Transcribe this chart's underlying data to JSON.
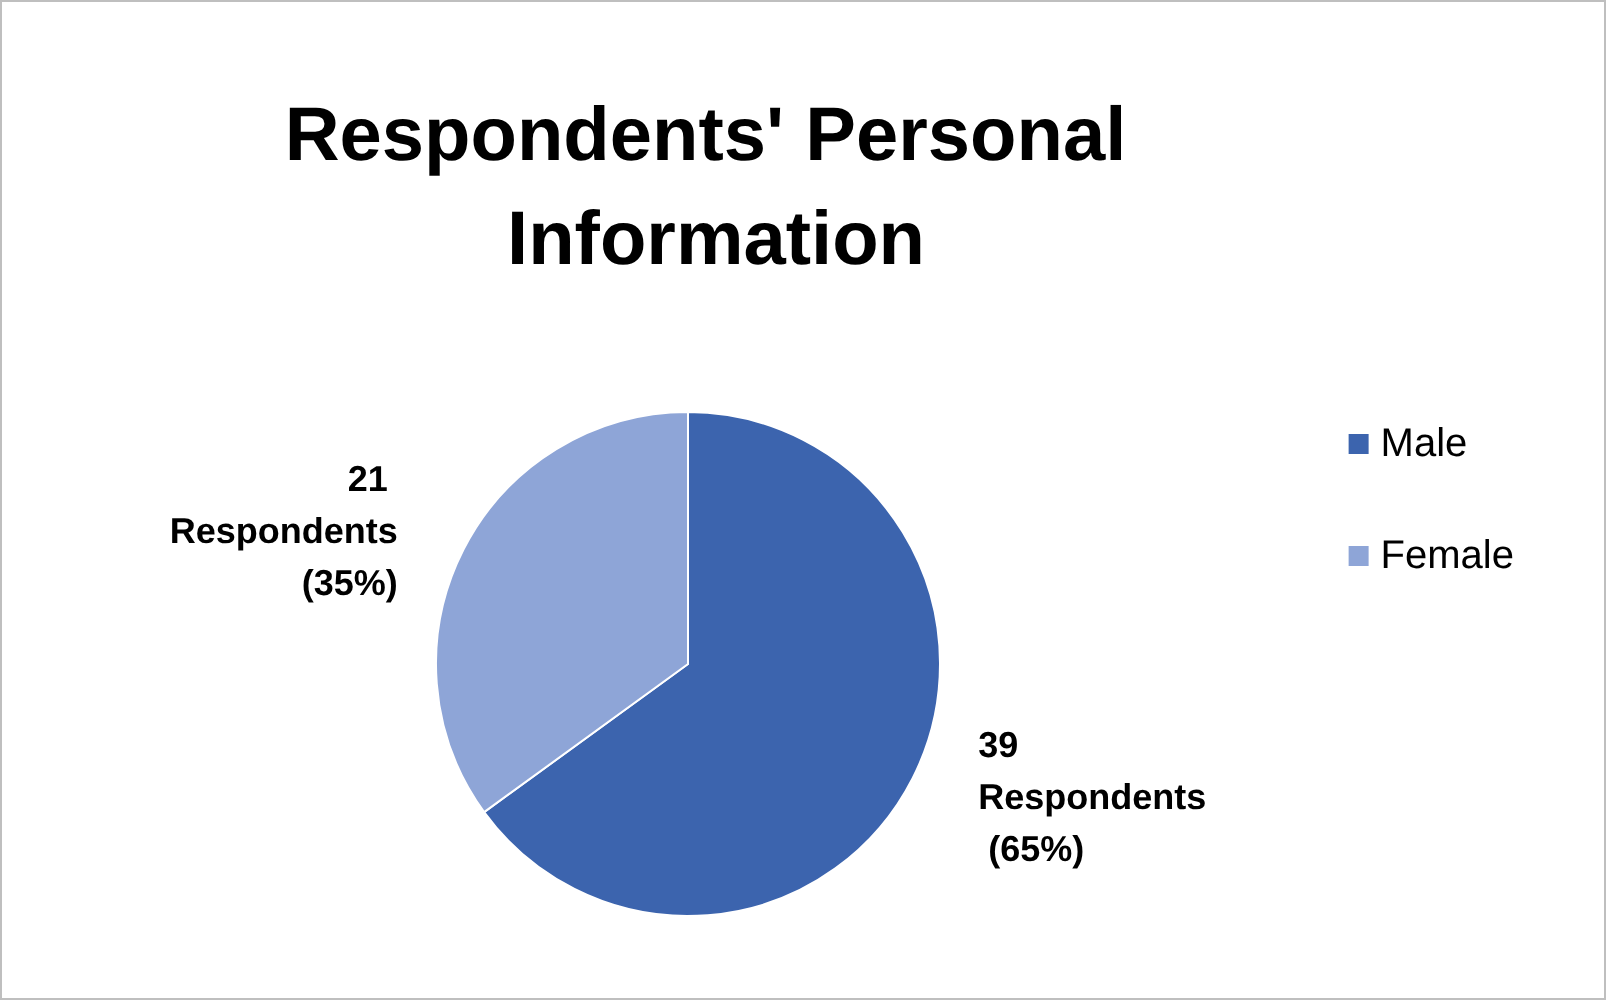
{
  "chart_data": {
    "type": "pie",
    "title": "Respondents' Personal Information",
    "categories": [
      "Male",
      "Female"
    ],
    "values": [
      39,
      21
    ],
    "colors": [
      "#3c64ae",
      "#8ea5d7"
    ],
    "value_labels": [
      "39 Respondents (65%)",
      "21 Respondents (35%)"
    ],
    "legend": "right"
  }
}
